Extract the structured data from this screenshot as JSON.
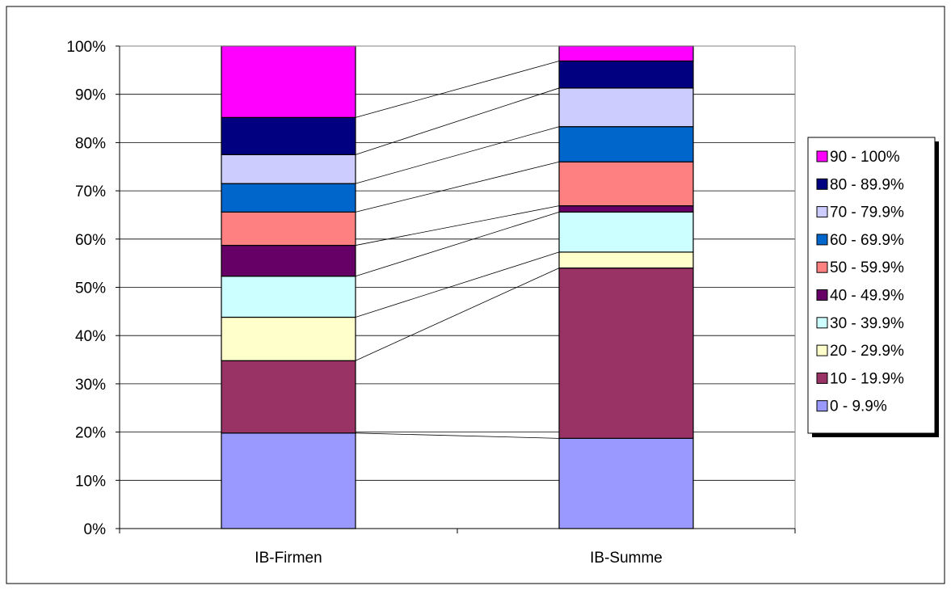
{
  "chart_data": {
    "type": "bar",
    "stacked": "percent",
    "categories": [
      "IB-Firmen",
      "IB-Summe"
    ],
    "series": [
      {
        "name": "0 - 9.9%",
        "color": "#9999ff",
        "values": [
          19.8,
          18.7
        ]
      },
      {
        "name": "10 - 19.9%",
        "color": "#993366",
        "values": [
          15.0,
          35.3
        ]
      },
      {
        "name": "20 - 29.9%",
        "color": "#ffffcc",
        "values": [
          9.0,
          3.3
        ]
      },
      {
        "name": "30 - 39.9%",
        "color": "#ccffff",
        "values": [
          8.5,
          8.3
        ]
      },
      {
        "name": "40 - 49.9%",
        "color": "#660066",
        "values": [
          6.4,
          1.3
        ]
      },
      {
        "name": "50 - 59.9%",
        "color": "#ff8080",
        "values": [
          6.9,
          9.1
        ]
      },
      {
        "name": "60 - 69.9%",
        "color": "#0066cc",
        "values": [
          5.9,
          7.3
        ]
      },
      {
        "name": "70 - 79.9%",
        "color": "#ccccff",
        "values": [
          6.0,
          8.0
        ]
      },
      {
        "name": "80 - 89.9%",
        "color": "#000080",
        "values": [
          7.7,
          5.6
        ]
      },
      {
        "name": "90 - 100%",
        "color": "#ff00ff",
        "values": [
          14.8,
          3.1
        ]
      }
    ],
    "ylim": [
      0,
      100
    ],
    "yticks": [
      "0%",
      "10%",
      "20%",
      "30%",
      "40%",
      "50%",
      "60%",
      "70%",
      "80%",
      "90%",
      "100%"
    ],
    "grid": true,
    "series_lines": true,
    "legend_position": "right",
    "title": "",
    "xlabel": "",
    "ylabel": ""
  }
}
